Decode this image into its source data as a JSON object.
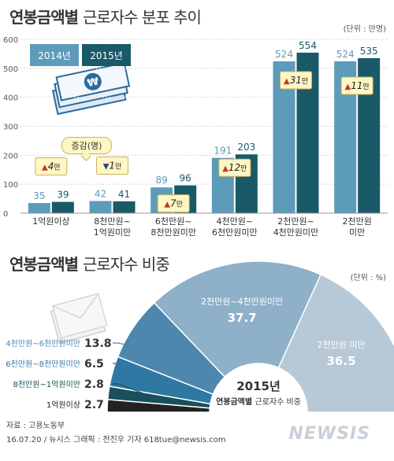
{
  "header": {
    "title1_bold": "연봉금액별",
    "title1_light": "근로자수 분포 추이",
    "unit1": "(단위 : 만명)",
    "title2_bold": "연봉금액별",
    "title2_light": "근로자수 비중",
    "unit2": "(단위 : %)"
  },
  "legend": {
    "y2014": "2014년",
    "y2015": "2015년"
  },
  "bubble": "증감(명)",
  "colors": {
    "y2014": "#5d9bbb",
    "y2015": "#1a5a68",
    "up": "#c0392b",
    "down": "#27408b",
    "badge_bg": "#fff6c4",
    "badge_border": "#c9b45c"
  },
  "chart_data": [
    {
      "type": "bar",
      "categories": [
        "1억원이상",
        "8천만원~\n1억원미만",
        "6천만원~\n8천만원미만",
        "4천만원~\n6천만원미만",
        "2천만원~\n4천만원미만",
        "2천만원\n미만"
      ],
      "series": [
        {
          "name": "2014년",
          "values": [
            35,
            42,
            89,
            191,
            524,
            524
          ]
        },
        {
          "name": "2015년",
          "values": [
            39,
            41,
            96,
            203,
            554,
            535
          ]
        }
      ],
      "changes": [
        {
          "dir": "up",
          "num": "4",
          "unit": "만"
        },
        {
          "dir": "down",
          "num": "1",
          "unit": "만"
        },
        {
          "dir": "up",
          "num": "7",
          "unit": "만"
        },
        {
          "dir": "up",
          "num": "12",
          "unit": "만"
        },
        {
          "dir": "up",
          "num": "31",
          "unit": "만"
        },
        {
          "dir": "up",
          "num": "11",
          "unit": "만"
        }
      ],
      "yticks": [
        "0",
        "100",
        "200",
        "300",
        "400",
        "500",
        "600"
      ],
      "ylim": [
        0,
        600
      ],
      "grid": true
    },
    {
      "type": "pie",
      "center_label": "2015년",
      "center_sub_bold": "연봉금액별",
      "center_sub_light": "근로자수 비중",
      "slices": [
        {
          "label": "1억원이상",
          "value": 2.7,
          "color": "#222222"
        },
        {
          "label": "8천만원~1억원미만",
          "value": 2.8,
          "color": "#1a4f5c"
        },
        {
          "label": "6천만원~8천만원미만",
          "value": 6.5,
          "color": "#2f78a3"
        },
        {
          "label": "4천만원~6천만원미만",
          "value": 13.8,
          "color": "#4d87ad"
        },
        {
          "label": "2천만원~4천만원미만",
          "value": 37.7,
          "color": "#8eb0c9"
        },
        {
          "label": "2천만원 미만",
          "value": 36.5,
          "color": "#b7c8d6"
        }
      ],
      "value_labels": [
        "2.7",
        "2.8",
        "6.5",
        "13.8",
        "37.7",
        "36.5"
      ]
    }
  ],
  "footer": {
    "source": "자료 : 고용노동부",
    "credit": "16.07.20 / 뉴시스 그래픽 : 전진우 기자 618tue@newsis.com",
    "brand": "NEWSIS"
  }
}
